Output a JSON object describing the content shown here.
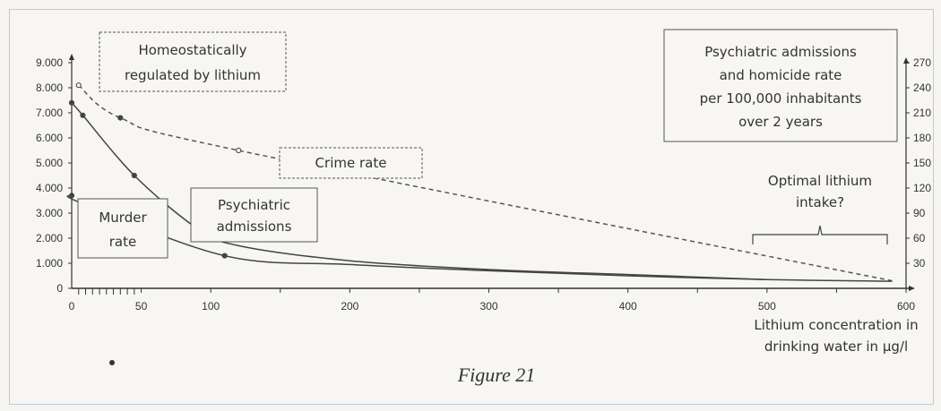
{
  "figure_caption": "Figure 21",
  "chart_data": {
    "type": "line",
    "xlabel": [
      "Lithium concentration in",
      "drinking water in µg/l"
    ],
    "x_ticks": [
      0,
      50,
      100,
      200,
      300,
      400,
      500,
      600
    ],
    "left_axis": {
      "ticks": [
        "0",
        "1.000",
        "2.000",
        "3.000",
        "4.000",
        "5.000",
        "6.000",
        "7.000",
        "8.000",
        "9.000"
      ],
      "range": [
        0,
        9000
      ]
    },
    "right_axis": {
      "ticks": [
        "30",
        "60",
        "90",
        "120",
        "150",
        "180",
        "210",
        "240",
        "270"
      ],
      "range": [
        0,
        270
      ]
    },
    "xlim": [
      0,
      600
    ],
    "series": [
      {
        "name": "Crime rate",
        "style": "dashed",
        "color": "#555555",
        "x": [
          5,
          35,
          120,
          590
        ],
        "y": [
          8100,
          6800,
          5500,
          300
        ],
        "markers": [
          5,
          35,
          120
        ]
      },
      {
        "name": "Psychiatric admissions",
        "style": "solid",
        "color": "#444444",
        "x": [
          0,
          8,
          45,
          90,
          120,
          200,
          300,
          400,
          500
        ],
        "y": [
          7400,
          6900,
          4500,
          2400,
          1700,
          1100,
          750,
          550,
          350
        ],
        "markers": [
          0,
          8,
          45
        ]
      },
      {
        "name": "Murder rate",
        "style": "solid",
        "color": "#444444",
        "x": [
          0,
          7,
          110,
          200,
          300,
          400,
          500,
          590
        ],
        "y": [
          3700,
          3400,
          1300,
          950,
          700,
          500,
          350,
          280
        ],
        "markers": [
          0,
          7,
          110
        ]
      }
    ],
    "annotations": {
      "homeostatic": [
        "Homeostatically",
        "regulated by lithium"
      ],
      "crime": [
        "Crime rate"
      ],
      "murder": [
        "Murder",
        "rate"
      ],
      "psychiatric": [
        "Psychiatric",
        "admissions"
      ],
      "optimal": [
        "Optimal lithium",
        "intake?"
      ],
      "legend_box": [
        "Psychiatric admissions",
        "and homicide rate",
        "per 100,000 inhabitants",
        "over 2 years"
      ]
    }
  }
}
